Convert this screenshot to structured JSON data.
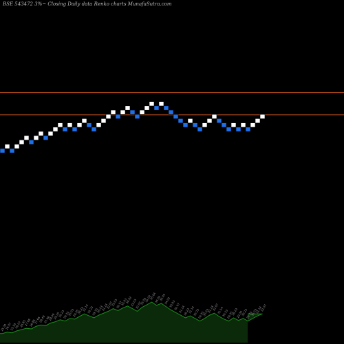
{
  "title": "BSE 543472  3%~  Closing Daily data  Renko  charts MunafaSutra.com",
  "colors": {
    "background": "#000000",
    "up_brick": "#ffffff",
    "down_brick": "#1e6fe8",
    "level_line": "#c0501a",
    "volume_fill": "#0a2a0a",
    "volume_line": "#1f8a1f",
    "volume_label": "#9a9a9a"
  },
  "chart_data": {
    "type": "renko",
    "brick_size_label": "3%",
    "bricks": [
      {
        "level": 0,
        "dir": "down"
      },
      {
        "level": 1,
        "dir": "up"
      },
      {
        "level": 0,
        "dir": "down"
      },
      {
        "level": 1,
        "dir": "up"
      },
      {
        "level": 2,
        "dir": "up"
      },
      {
        "level": 3,
        "dir": "up"
      },
      {
        "level": 2,
        "dir": "down"
      },
      {
        "level": 3,
        "dir": "up"
      },
      {
        "level": 4,
        "dir": "up"
      },
      {
        "level": 3,
        "dir": "down"
      },
      {
        "level": 4,
        "dir": "up"
      },
      {
        "level": 5,
        "dir": "up"
      },
      {
        "level": 6,
        "dir": "up"
      },
      {
        "level": 5,
        "dir": "down"
      },
      {
        "level": 6,
        "dir": "up"
      },
      {
        "level": 5,
        "dir": "down"
      },
      {
        "level": 6,
        "dir": "up"
      },
      {
        "level": 7,
        "dir": "up"
      },
      {
        "level": 6,
        "dir": "down"
      },
      {
        "level": 5,
        "dir": "down"
      },
      {
        "level": 6,
        "dir": "up"
      },
      {
        "level": 7,
        "dir": "up"
      },
      {
        "level": 8,
        "dir": "up"
      },
      {
        "level": 9,
        "dir": "up"
      },
      {
        "level": 8,
        "dir": "down"
      },
      {
        "level": 9,
        "dir": "up"
      },
      {
        "level": 10,
        "dir": "up"
      },
      {
        "level": 9,
        "dir": "down"
      },
      {
        "level": 8,
        "dir": "down"
      },
      {
        "level": 9,
        "dir": "up"
      },
      {
        "level": 10,
        "dir": "up"
      },
      {
        "level": 11,
        "dir": "up"
      },
      {
        "level": 10,
        "dir": "down"
      },
      {
        "level": 11,
        "dir": "up"
      },
      {
        "level": 10,
        "dir": "down"
      },
      {
        "level": 9,
        "dir": "down"
      },
      {
        "level": 8,
        "dir": "down"
      },
      {
        "level": 7,
        "dir": "down"
      },
      {
        "level": 6,
        "dir": "down"
      },
      {
        "level": 7,
        "dir": "up"
      },
      {
        "level": 6,
        "dir": "down"
      },
      {
        "level": 5,
        "dir": "down"
      },
      {
        "level": 6,
        "dir": "up"
      },
      {
        "level": 7,
        "dir": "up"
      },
      {
        "level": 8,
        "dir": "up"
      },
      {
        "level": 7,
        "dir": "down"
      },
      {
        "level": 6,
        "dir": "down"
      },
      {
        "level": 5,
        "dir": "down"
      },
      {
        "level": 6,
        "dir": "up"
      },
      {
        "level": 5,
        "dir": "down"
      },
      {
        "level": 6,
        "dir": "up"
      },
      {
        "level": 5,
        "dir": "down"
      },
      {
        "level": 6,
        "dir": "up"
      },
      {
        "level": 7,
        "dir": "up"
      },
      {
        "level": 8,
        "dir": "up"
      }
    ],
    "level_lines": [
      13.6,
      8.4
    ],
    "volume": [
      14,
      16,
      15,
      18,
      20,
      22,
      21,
      25,
      27,
      26,
      30,
      32,
      35,
      33,
      37,
      36,
      40,
      44,
      41,
      38,
      42,
      45,
      48,
      52,
      49,
      53,
      56,
      52,
      48,
      54,
      58,
      62,
      57,
      60,
      55,
      50,
      46,
      42,
      38,
      41,
      37,
      33,
      37,
      42,
      45,
      40,
      36,
      33,
      38,
      34,
      37,
      33,
      37,
      41,
      44
    ],
    "volume_labels": [
      "25.30",
      "26.07",
      "25.30",
      "26.07",
      "26.85",
      "27.66",
      "26.85",
      "27.66",
      "28.49",
      "27.66",
      "28.49",
      "29.35",
      "30.23",
      "29.35",
      "30.23",
      "29.35",
      "30.23",
      "31.14",
      "30.23",
      "29.35",
      "30.23",
      "31.14",
      "32.07",
      "33.03",
      "32.07",
      "33.03",
      "34.02",
      "33.03",
      "32.07",
      "33.03",
      "34.02",
      "35.04",
      "34.02",
      "35.04",
      "34.02",
      "33.03",
      "32.07",
      "31.14",
      "30.23",
      "31.14",
      "30.23",
      "29.35",
      "30.23",
      "31.14",
      "32.07",
      "31.14",
      "30.23",
      "29.35",
      "30.23",
      "29.35",
      "30.23",
      "29.35",
      "30.23",
      "31.14",
      "32.07"
    ]
  }
}
